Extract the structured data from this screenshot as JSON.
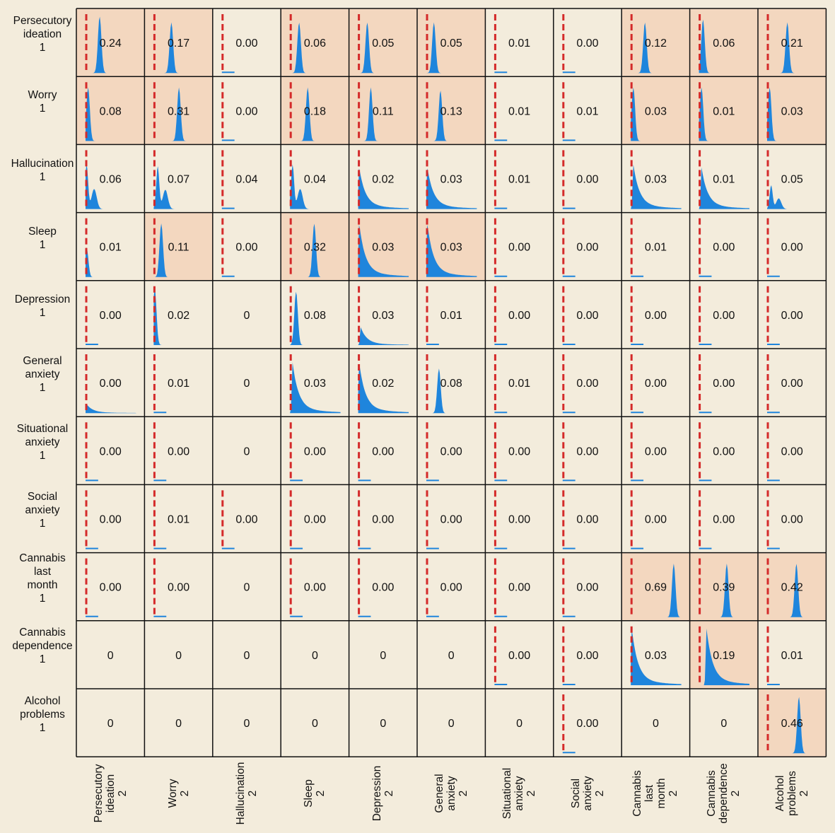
{
  "colors": {
    "background": "#f3ecdc",
    "highlight": "#f3d7bf",
    "density": "#1f85dc",
    "zero_line": "#d42a2a",
    "border": "#111111"
  },
  "chart_data": {
    "type": "heatmap",
    "row_labels": [
      [
        "Persecutory",
        "ideation",
        "1"
      ],
      [
        "Worry",
        "1"
      ],
      [
        "Hallucination",
        "1"
      ],
      [
        "Sleep",
        "1"
      ],
      [
        "Depression",
        "1"
      ],
      [
        "General",
        "anxiety",
        "1"
      ],
      [
        "Situational",
        "anxiety",
        "1"
      ],
      [
        "Social",
        "anxiety",
        "1"
      ],
      [
        "Cannabis",
        "last",
        "month",
        "1"
      ],
      [
        "Cannabis",
        "dependence",
        "1"
      ],
      [
        "Alcohol",
        "problems",
        "1"
      ]
    ],
    "col_labels": [
      [
        "Persecutory",
        "ideation",
        "2"
      ],
      [
        "Worry",
        "2"
      ],
      [
        "Hallucination",
        "2"
      ],
      [
        "Sleep",
        "2"
      ],
      [
        "Depression",
        "2"
      ],
      [
        "General",
        "anxiety",
        "2"
      ],
      [
        "Situational",
        "anxiety",
        "2"
      ],
      [
        "Social",
        "anxiety",
        "2"
      ],
      [
        "Cannabis",
        "last",
        "month",
        "2"
      ],
      [
        "Cannabis",
        "dependence",
        "2"
      ],
      [
        "Alcohol",
        "problems",
        "2"
      ]
    ],
    "values": [
      [
        "0.24",
        "0.17",
        "0.00",
        "0.06",
        "0.05",
        "0.05",
        "0.01",
        "0.00",
        "0.12",
        "0.06",
        "0.21"
      ],
      [
        "0.08",
        "0.31",
        "0.00",
        "0.18",
        "0.11",
        "0.13",
        "0.01",
        "0.01",
        "0.03",
        "0.01",
        "0.03"
      ],
      [
        "0.06",
        "0.07",
        "0.04",
        "0.04",
        "0.02",
        "0.03",
        "0.01",
        "0.00",
        "0.03",
        "0.01",
        "0.05"
      ],
      [
        "0.01",
        "0.11",
        "0.00",
        "0.32",
        "0.03",
        "0.03",
        "0.00",
        "0.00",
        "0.01",
        "0.00",
        "0.00"
      ],
      [
        "0.00",
        "0.02",
        "0",
        "0.08",
        "0.03",
        "0.01",
        "0.00",
        "0.00",
        "0.00",
        "0.00",
        "0.00"
      ],
      [
        "0.00",
        "0.01",
        "0",
        "0.03",
        "0.02",
        "0.08",
        "0.01",
        "0.00",
        "0.00",
        "0.00",
        "0.00"
      ],
      [
        "0.00",
        "0.00",
        "0",
        "0.00",
        "0.00",
        "0.00",
        "0.00",
        "0.00",
        "0.00",
        "0.00",
        "0.00"
      ],
      [
        "0.00",
        "0.01",
        "0.00",
        "0.00",
        "0.00",
        "0.00",
        "0.00",
        "0.00",
        "0.00",
        "0.00",
        "0.00"
      ],
      [
        "0.00",
        "0.00",
        "0",
        "0.00",
        "0.00",
        "0.00",
        "0.00",
        "0.00",
        "0.69",
        "0.39",
        "0.42"
      ],
      [
        "0",
        "0",
        "0",
        "0",
        "0",
        "0",
        "0.00",
        "0.00",
        "0.03",
        "0.19",
        "0.01"
      ],
      [
        "0",
        "0",
        "0",
        "0",
        "0",
        "0",
        "0",
        "0.00",
        "0",
        "0",
        "0.46"
      ]
    ],
    "highlighted": [
      [
        1,
        1,
        0,
        1,
        1,
        1,
        0,
        0,
        1,
        1,
        1
      ],
      [
        1,
        1,
        0,
        1,
        1,
        1,
        0,
        0,
        1,
        1,
        1
      ],
      [
        0,
        0,
        0,
        0,
        0,
        0,
        0,
        0,
        0,
        0,
        0
      ],
      [
        0,
        1,
        0,
        1,
        1,
        1,
        0,
        0,
        0,
        0,
        0
      ],
      [
        0,
        0,
        0,
        0,
        0,
        0,
        0,
        0,
        0,
        0,
        0
      ],
      [
        0,
        0,
        0,
        0,
        0,
        0,
        0,
        0,
        0,
        0,
        0
      ],
      [
        0,
        0,
        0,
        0,
        0,
        0,
        0,
        0,
        0,
        0,
        0
      ],
      [
        0,
        0,
        0,
        0,
        0,
        0,
        0,
        0,
        0,
        0,
        0
      ],
      [
        0,
        0,
        0,
        0,
        0,
        0,
        0,
        0,
        1,
        1,
        1
      ],
      [
        0,
        0,
        0,
        0,
        0,
        0,
        0,
        0,
        0,
        1,
        0
      ],
      [
        0,
        0,
        0,
        0,
        0,
        0,
        0,
        0,
        0,
        0,
        1
      ]
    ],
    "density_shape": [
      [
        "peak",
        "peak",
        "flat",
        "peak",
        "peak",
        "peak",
        "flat",
        "flat",
        "peak",
        "peak",
        "peak"
      ],
      [
        "peak",
        "peak",
        "flat",
        "peak",
        "peak",
        "peak",
        "flat",
        "flat",
        "peak",
        "peak",
        "peak"
      ],
      [
        "bimodal",
        "bimodal",
        "flat",
        "bimodal",
        "skew",
        "skew",
        "flat",
        "flat",
        "skew",
        "skew",
        "bimodal"
      ],
      [
        "peak",
        "peak",
        "flat",
        "peak",
        "skew",
        "skew",
        "flat",
        "flat",
        "flat",
        "flat",
        "flat"
      ],
      [
        "flat",
        "peak",
        "none",
        "peak",
        "skew",
        "flat",
        "flat",
        "flat",
        "flat",
        "flat",
        "flat"
      ],
      [
        "skew",
        "flat",
        "none",
        "skew",
        "skew",
        "peak",
        "flat",
        "flat",
        "flat",
        "flat",
        "flat"
      ],
      [
        "flat",
        "flat",
        "none",
        "flat",
        "flat",
        "flat",
        "flat",
        "flat",
        "flat",
        "flat",
        "flat"
      ],
      [
        "flat",
        "flat",
        "flat",
        "flat",
        "flat",
        "flat",
        "flat",
        "flat",
        "flat",
        "flat",
        "flat"
      ],
      [
        "flat",
        "flat",
        "none",
        "flat",
        "flat",
        "flat",
        "flat",
        "flat",
        "peak",
        "peak",
        "peak"
      ],
      [
        "none",
        "none",
        "none",
        "none",
        "none",
        "none",
        "flat",
        "flat",
        "skew",
        "skew",
        "flat"
      ],
      [
        "none",
        "none",
        "none",
        "none",
        "none",
        "none",
        "none",
        "flat",
        "none",
        "none",
        "peak"
      ]
    ],
    "density_peak_location": [
      [
        0.28,
        0.35,
        0,
        0.18,
        0.18,
        0.15,
        0,
        0,
        0.28,
        0.08,
        0.4
      ],
      [
        0.05,
        0.5,
        0,
        0.35,
        0.25,
        0.28,
        0,
        0,
        0.05,
        0.05,
        0.05
      ],
      [
        0.02,
        0.08,
        0,
        0.05,
        0.02,
        0.02,
        0,
        0,
        0.05,
        0.05,
        0.08
      ],
      [
        0.02,
        0.15,
        0,
        0.48,
        0.02,
        0.02,
        0,
        0,
        0,
        0,
        0
      ],
      [
        0,
        0.02,
        0,
        0.12,
        0.05,
        0,
        0,
        0,
        0,
        0,
        0
      ],
      [
        0.02,
        0,
        0,
        0.05,
        0.02,
        0.25,
        0,
        0,
        0,
        0,
        0
      ],
      [
        0,
        0,
        0,
        0,
        0,
        0,
        0,
        0,
        0,
        0,
        0
      ],
      [
        0,
        0,
        0,
        0,
        0,
        0,
        0,
        0,
        0,
        0,
        0
      ],
      [
        0,
        0,
        0,
        0,
        0,
        0,
        0,
        0,
        0.85,
        0.55,
        0.58
      ],
      [
        0,
        0,
        0,
        0,
        0,
        0,
        0,
        0,
        0.02,
        0.15,
        0
      ],
      [
        0,
        0,
        0,
        0,
        0,
        0,
        0,
        0,
        0,
        0,
        0.63
      ]
    ],
    "density_peak_height": [
      [
        0.95,
        0.85,
        0,
        0.85,
        0.85,
        0.85,
        0,
        0,
        0.85,
        0.9,
        0.85
      ],
      [
        0.9,
        0.9,
        0,
        0.9,
        0.9,
        0.85,
        0,
        0,
        0.9,
        0.9,
        0.9
      ],
      [
        0.75,
        0.72,
        0,
        0.75,
        0.7,
        0.7,
        0,
        0,
        0.75,
        0.7,
        0.4
      ],
      [
        0.5,
        0.9,
        0,
        0.9,
        0.9,
        0.9,
        0,
        0,
        0,
        0,
        0
      ],
      [
        0,
        0.95,
        0,
        0.9,
        0.3,
        0,
        0,
        0,
        0,
        0,
        0
      ],
      [
        0.15,
        0,
        0,
        0.85,
        0.85,
        0.75,
        0,
        0,
        0,
        0,
        0
      ],
      [
        0,
        0,
        0,
        0,
        0,
        0,
        0,
        0,
        0,
        0,
        0
      ],
      [
        0,
        0,
        0,
        0,
        0,
        0,
        0,
        0,
        0,
        0,
        0
      ],
      [
        0,
        0,
        0,
        0,
        0,
        0,
        0,
        0,
        0.9,
        0.9,
        0.9
      ],
      [
        0,
        0,
        0,
        0,
        0,
        0,
        0,
        0,
        0.95,
        0.95,
        0
      ],
      [
        0,
        0,
        0,
        0,
        0,
        0,
        0,
        0,
        0,
        0,
        0.95
      ]
    ]
  }
}
